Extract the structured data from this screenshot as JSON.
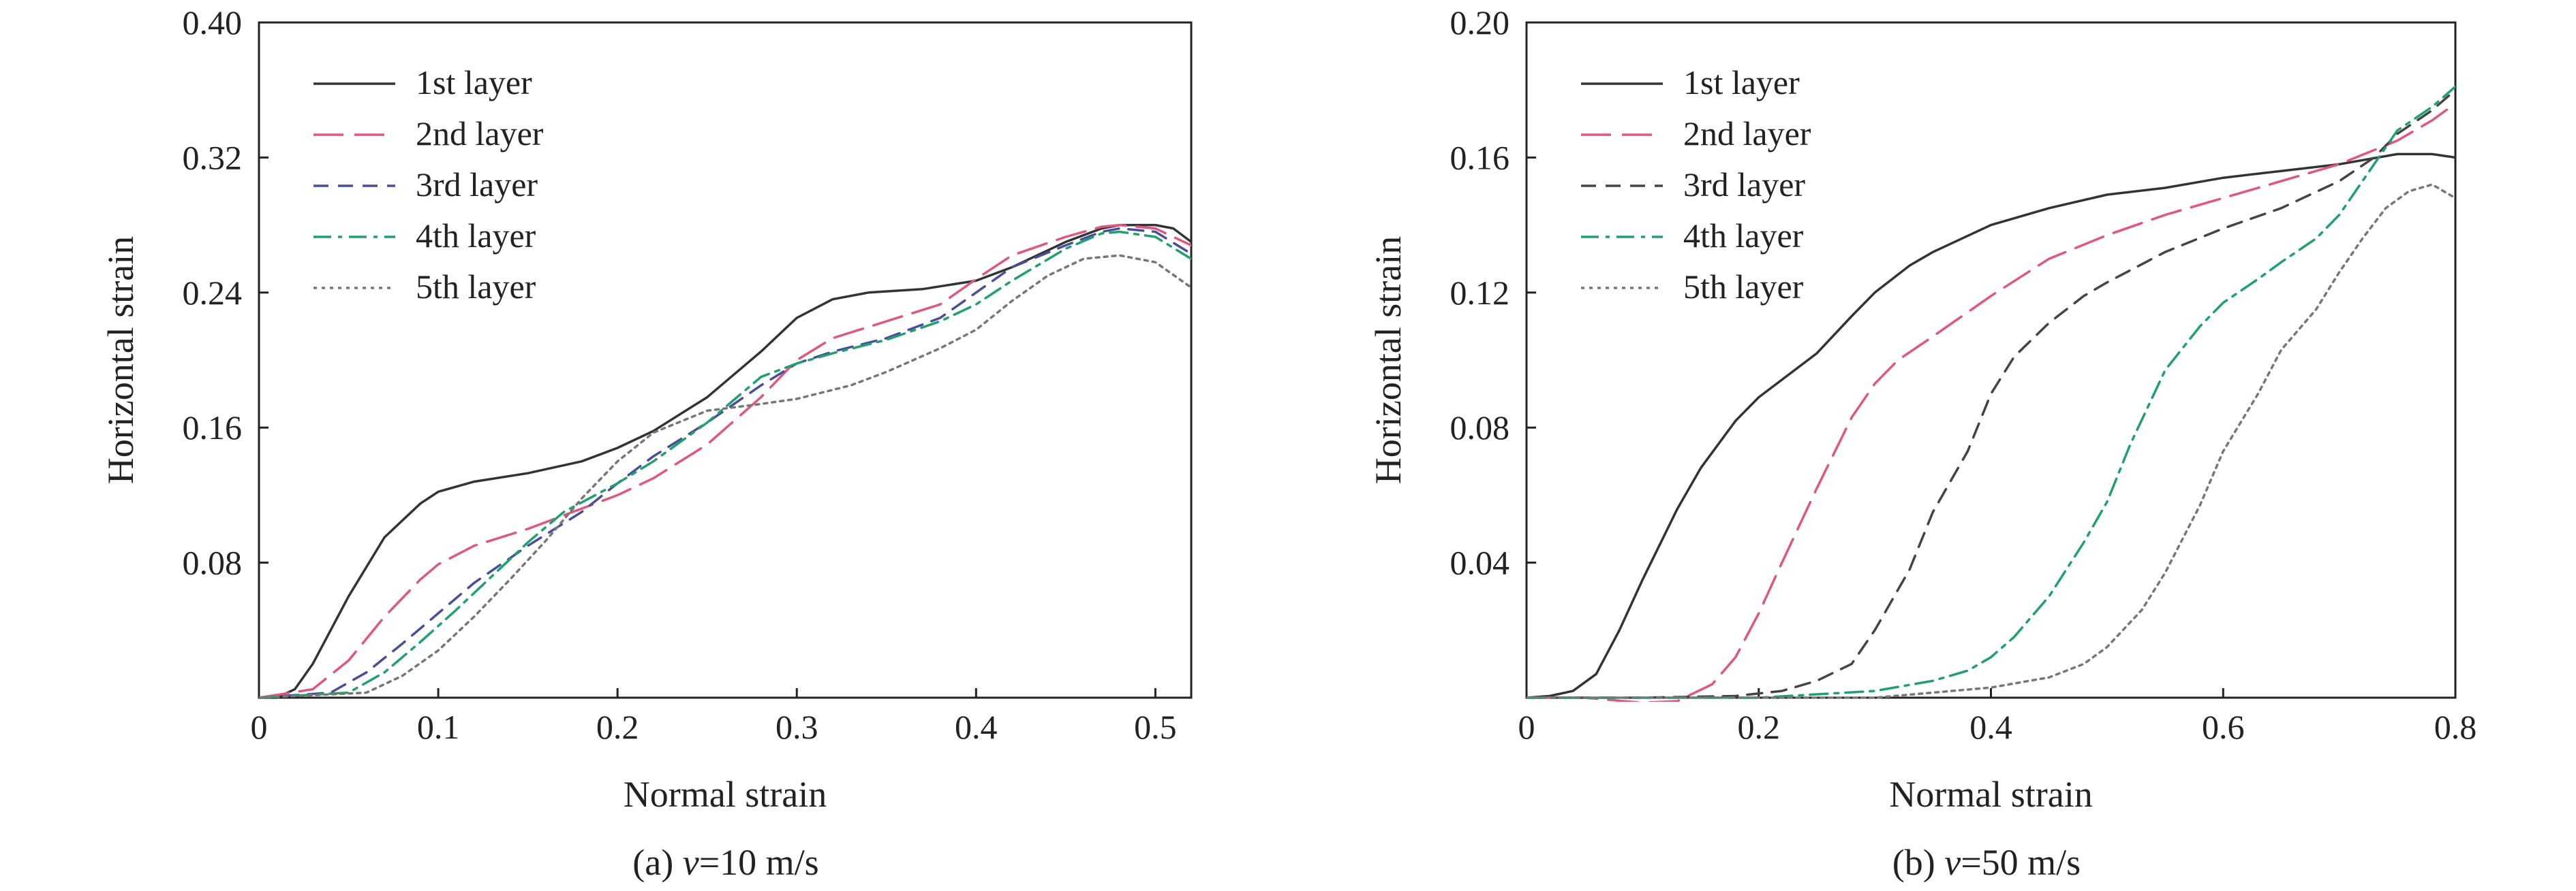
{
  "charts": [
    {
      "caption_prefix": "(a) ",
      "caption_var": "v",
      "caption_suffix": "=10 m/s"
    },
    {
      "caption_prefix": "(b) ",
      "caption_var": "v",
      "caption_suffix": "=50 m/s"
    }
  ],
  "chart_data": [
    {
      "type": "line",
      "xlabel": "Normal strain",
      "ylabel": "Horizontal strain",
      "xlim": [
        0,
        0.52
      ],
      "ylim": [
        0,
        0.4
      ],
      "xticks": [
        0,
        0.1,
        0.2,
        0.3,
        0.4,
        0.5
      ],
      "xtick_labels": [
        "0",
        "0.1",
        "0.2",
        "0.3",
        "0.4",
        "0.5"
      ],
      "yticks": [
        0.08,
        0.16,
        0.24,
        0.32,
        0.4
      ],
      "ytick_labels": [
        "0.08",
        "0.16",
        "0.24",
        "0.32",
        "0.40"
      ],
      "legend_position": "top-left",
      "series": [
        {
          "name": "1st layer",
          "color": "#333333",
          "dash": "solid",
          "x": [
            0,
            0.01,
            0.02,
            0.03,
            0.05,
            0.07,
            0.09,
            0.1,
            0.12,
            0.15,
            0.18,
            0.2,
            0.22,
            0.25,
            0.28,
            0.3,
            0.32,
            0.34,
            0.37,
            0.4,
            0.42,
            0.45,
            0.47,
            0.48,
            0.5,
            0.51,
            0.52
          ],
          "y": [
            0,
            0,
            0.005,
            0.02,
            0.06,
            0.095,
            0.115,
            0.122,
            0.128,
            0.133,
            0.14,
            0.148,
            0.158,
            0.178,
            0.205,
            0.225,
            0.236,
            0.24,
            0.242,
            0.247,
            0.255,
            0.27,
            0.278,
            0.28,
            0.28,
            0.278,
            0.27
          ]
        },
        {
          "name": "2nd layer",
          "color": "#e0577e",
          "dash": "long",
          "x": [
            0,
            0.03,
            0.05,
            0.07,
            0.09,
            0.1,
            0.12,
            0.15,
            0.18,
            0.2,
            0.22,
            0.25,
            0.28,
            0.3,
            0.32,
            0.35,
            0.38,
            0.4,
            0.42,
            0.45,
            0.47,
            0.48,
            0.5,
            0.52
          ],
          "y": [
            0,
            0.005,
            0.022,
            0.048,
            0.07,
            0.079,
            0.09,
            0.1,
            0.112,
            0.12,
            0.13,
            0.15,
            0.178,
            0.2,
            0.213,
            0.223,
            0.233,
            0.248,
            0.262,
            0.273,
            0.279,
            0.28,
            0.278,
            0.268
          ]
        },
        {
          "name": "3rd layer",
          "color": "#4a4e9a",
          "dash": "medium",
          "x": [
            0,
            0.04,
            0.06,
            0.08,
            0.1,
            0.12,
            0.15,
            0.18,
            0.2,
            0.22,
            0.25,
            0.28,
            0.3,
            0.32,
            0.35,
            0.38,
            0.4,
            0.42,
            0.45,
            0.47,
            0.48,
            0.5,
            0.52
          ],
          "y": [
            0,
            0.003,
            0.015,
            0.032,
            0.05,
            0.068,
            0.09,
            0.11,
            0.127,
            0.143,
            0.163,
            0.185,
            0.198,
            0.205,
            0.213,
            0.225,
            0.24,
            0.255,
            0.268,
            0.276,
            0.278,
            0.276,
            0.263
          ]
        },
        {
          "name": "4th layer",
          "color": "#20a070",
          "dash": "dashdot",
          "x": [
            0,
            0.05,
            0.07,
            0.09,
            0.11,
            0.13,
            0.15,
            0.17,
            0.2,
            0.22,
            0.25,
            0.28,
            0.3,
            0.32,
            0.35,
            0.38,
            0.4,
            0.42,
            0.45,
            0.47,
            0.48,
            0.5,
            0.52
          ],
          "y": [
            0,
            0.003,
            0.015,
            0.033,
            0.052,
            0.072,
            0.092,
            0.11,
            0.127,
            0.14,
            0.163,
            0.19,
            0.198,
            0.204,
            0.212,
            0.223,
            0.233,
            0.247,
            0.266,
            0.275,
            0.276,
            0.273,
            0.26
          ]
        },
        {
          "name": "5th layer",
          "color": "#777777",
          "dash": "dotted",
          "x": [
            0,
            0.06,
            0.08,
            0.1,
            0.12,
            0.14,
            0.16,
            0.18,
            0.2,
            0.22,
            0.25,
            0.28,
            0.3,
            0.33,
            0.35,
            0.38,
            0.4,
            0.42,
            0.44,
            0.46,
            0.48,
            0.5,
            0.52
          ],
          "y": [
            0,
            0.003,
            0.013,
            0.028,
            0.048,
            0.07,
            0.093,
            0.118,
            0.14,
            0.157,
            0.17,
            0.174,
            0.177,
            0.185,
            0.193,
            0.207,
            0.218,
            0.235,
            0.25,
            0.26,
            0.262,
            0.258,
            0.243
          ]
        }
      ]
    },
    {
      "type": "line",
      "xlabel": "Normal strain",
      "ylabel": "Horizontal strain",
      "xlim": [
        0,
        0.8
      ],
      "ylim": [
        0,
        0.2
      ],
      "xticks": [
        0,
        0.2,
        0.4,
        0.6,
        0.8
      ],
      "xtick_labels": [
        "0",
        "0.2",
        "0.4",
        "0.6",
        "0.8"
      ],
      "yticks": [
        0.04,
        0.08,
        0.12,
        0.16,
        0.2
      ],
      "ytick_labels": [
        "0.04",
        "0.08",
        "0.12",
        "0.16",
        "0.20"
      ],
      "legend_position": "top-left",
      "series": [
        {
          "name": "1st layer",
          "color": "#333333",
          "dash": "solid",
          "x": [
            0,
            0.02,
            0.04,
            0.06,
            0.08,
            0.1,
            0.13,
            0.15,
            0.18,
            0.2,
            0.25,
            0.28,
            0.3,
            0.33,
            0.35,
            0.4,
            0.45,
            0.5,
            0.55,
            0.6,
            0.65,
            0.7,
            0.75,
            0.78,
            0.8
          ],
          "y": [
            0,
            0.0005,
            0.002,
            0.007,
            0.02,
            0.035,
            0.056,
            0.068,
            0.082,
            0.089,
            0.102,
            0.113,
            0.12,
            0.128,
            0.132,
            0.14,
            0.145,
            0.149,
            0.151,
            0.154,
            0.156,
            0.158,
            0.161,
            0.161,
            0.16
          ]
        },
        {
          "name": "2nd layer",
          "color": "#e0577e",
          "dash": "long",
          "x": [
            0,
            0.05,
            0.1,
            0.13,
            0.16,
            0.18,
            0.2,
            0.22,
            0.25,
            0.28,
            0.3,
            0.32,
            0.35,
            0.4,
            0.45,
            0.5,
            0.55,
            0.6,
            0.65,
            0.7,
            0.75,
            0.78,
            0.8
          ],
          "y": [
            0,
            0,
            -0.0015,
            -0.001,
            0.004,
            0.012,
            0.025,
            0.04,
            0.062,
            0.083,
            0.093,
            0.1,
            0.107,
            0.119,
            0.13,
            0.137,
            0.143,
            0.148,
            0.153,
            0.158,
            0.165,
            0.171,
            0.176
          ]
        },
        {
          "name": "3rd layer",
          "color": "#444444",
          "dash": "medium",
          "x": [
            0,
            0.1,
            0.18,
            0.22,
            0.25,
            0.28,
            0.3,
            0.33,
            0.35,
            0.38,
            0.4,
            0.42,
            0.45,
            0.48,
            0.5,
            0.55,
            0.6,
            0.65,
            0.7,
            0.73,
            0.75,
            0.78,
            0.8
          ],
          "y": [
            0,
            0,
            0.0005,
            0.002,
            0.005,
            0.01,
            0.02,
            0.038,
            0.055,
            0.073,
            0.09,
            0.101,
            0.111,
            0.119,
            0.123,
            0.132,
            0.139,
            0.145,
            0.153,
            0.16,
            0.167,
            0.174,
            0.18
          ]
        },
        {
          "name": "4th layer",
          "color": "#20a070",
          "dash": "dashdot",
          "x": [
            0,
            0.2,
            0.3,
            0.35,
            0.38,
            0.4,
            0.42,
            0.45,
            0.48,
            0.5,
            0.52,
            0.55,
            0.58,
            0.6,
            0.63,
            0.65,
            0.68,
            0.7,
            0.73,
            0.75,
            0.78,
            0.8
          ],
          "y": [
            0,
            0,
            0.002,
            0.005,
            0.008,
            0.012,
            0.018,
            0.03,
            0.046,
            0.058,
            0.075,
            0.097,
            0.11,
            0.117,
            0.124,
            0.129,
            0.136,
            0.143,
            0.158,
            0.168,
            0.175,
            0.181
          ]
        },
        {
          "name": "5th layer",
          "color": "#777777",
          "dash": "dotted",
          "x": [
            0,
            0.3,
            0.4,
            0.45,
            0.48,
            0.5,
            0.53,
            0.55,
            0.58,
            0.6,
            0.63,
            0.65,
            0.68,
            0.7,
            0.72,
            0.74,
            0.76,
            0.78,
            0.8
          ],
          "y": [
            0,
            0,
            0.003,
            0.006,
            0.01,
            0.015,
            0.026,
            0.037,
            0.057,
            0.073,
            0.09,
            0.103,
            0.115,
            0.126,
            0.136,
            0.145,
            0.15,
            0.152,
            0.148
          ]
        }
      ]
    }
  ]
}
